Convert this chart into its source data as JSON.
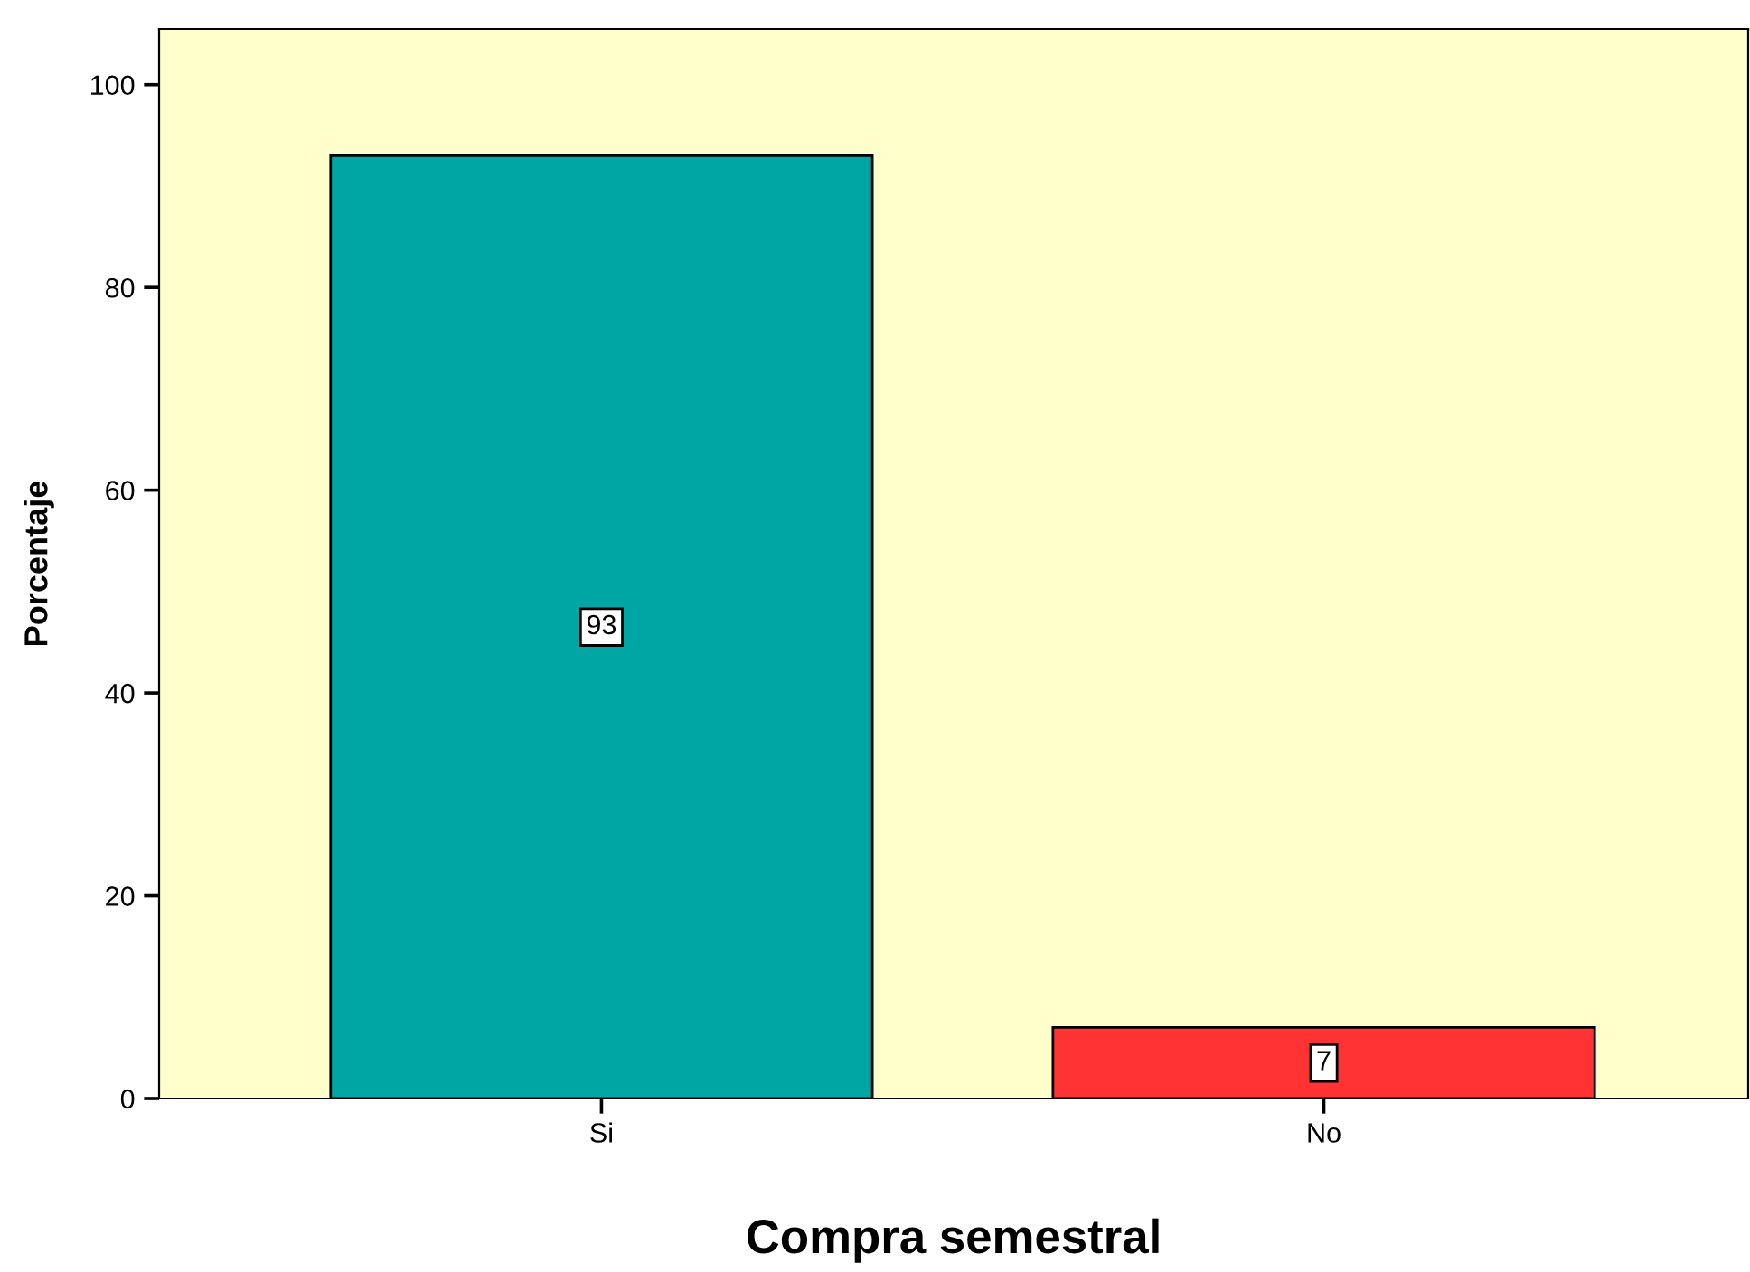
{
  "chart_data": {
    "type": "bar",
    "xlabel": "Compra semestral",
    "ylabel": "Porcentaje",
    "categories": [
      "Si",
      "No"
    ],
    "values": [
      93,
      7
    ],
    "colors": [
      "#00a6a3",
      "#ff3333"
    ],
    "ylim": [
      0,
      105.5
    ],
    "yticks": [
      0,
      20,
      40,
      60,
      80,
      100
    ],
    "data_labels": true,
    "grid": false,
    "legend": false
  }
}
